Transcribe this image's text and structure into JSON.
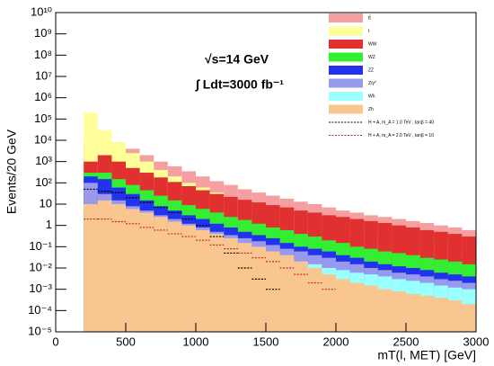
{
  "chart_data": {
    "type": "histogram",
    "title": null,
    "x_label": "mT(l, MET) [GeV]",
    "y_label": "Events/20 GeV",
    "annotations": [
      "√s=14 GeV",
      "∫ Ldt=3000 fb⁻¹"
    ],
    "log_y": true,
    "legend": "upper right",
    "xlim": [
      0,
      3000
    ],
    "xticks": [
      0,
      500,
      1000,
      1500,
      2000,
      2500,
      3000
    ],
    "ylim": [
      1e-05,
      10000000000
    ],
    "yticks": [
      {
        "value": 1e-05,
        "label": "10⁻⁵"
      },
      {
        "value": 0.0001,
        "label": "10⁻⁴"
      },
      {
        "value": 0.001,
        "label": "10⁻³"
      },
      {
        "value": 0.01,
        "label": "10⁻²"
      },
      {
        "value": 0.1,
        "label": "10⁻¹"
      },
      1,
      10,
      {
        "value": 100,
        "label": "10²"
      },
      {
        "value": 1000,
        "label": "10³"
      },
      {
        "value": 10000,
        "label": "10⁴"
      },
      {
        "value": 100000,
        "label": "10⁵"
      },
      {
        "value": 1000000,
        "label": "10⁶"
      },
      {
        "value": 10000000,
        "label": "10⁷"
      },
      {
        "value": 100000000,
        "label": "10⁸"
      },
      {
        "value": 1000000000,
        "label": "10⁹"
      },
      {
        "value": 10000000000,
        "label": "10¹⁰"
      }
    ],
    "bins": [
      200,
      300,
      400,
      500,
      600,
      700,
      800,
      900,
      1000,
      1100,
      1200,
      1300,
      1400,
      1500,
      1600,
      1700,
      1800,
      1900,
      2000,
      2100,
      2200,
      2300,
      2400,
      2500,
      2600,
      2700,
      2800,
      2900,
      3000
    ],
    "series": [
      {
        "name": "tt̄",
        "color": "#f4a0a0",
        "style": "fill",
        "values": [
          10000,
          15000,
          8000,
          4000,
          2000,
          1000,
          600,
          350,
          200,
          120,
          80,
          50,
          35,
          25,
          18,
          13,
          10,
          7,
          5,
          4,
          3,
          2.5,
          2,
          1.6,
          1.3,
          1,
          0.8,
          0.6
        ]
      },
      {
        "name": "t",
        "color": "#ffff99",
        "style": "fill",
        "values": [
          200000,
          30000,
          8000,
          2500,
          1000,
          400,
          200,
          100,
          60,
          35,
          20,
          12,
          8,
          5,
          3,
          2,
          1.3,
          1,
          0.7,
          0.5,
          0.35,
          0.25,
          0.2,
          0.15,
          0.1,
          0.08,
          0.06,
          0.05
        ]
      },
      {
        "name": "WW",
        "color": "#e03030",
        "style": "fill",
        "values": [
          1000,
          2000,
          1000,
          500,
          300,
          180,
          110,
          70,
          45,
          30,
          22,
          16,
          12,
          9,
          7,
          5,
          4,
          3,
          2.5,
          2,
          1.6,
          1.3,
          1,
          0.8,
          0.6,
          0.5,
          0.4,
          0.3
        ]
      },
      {
        "name": "WZ",
        "color": "#33ee33",
        "style": "fill",
        "values": [
          300,
          300,
          150,
          80,
          45,
          25,
          15,
          9,
          6,
          4,
          2.5,
          1.8,
          1.2,
          0.8,
          0.6,
          0.4,
          0.3,
          0.2,
          0.15,
          0.1,
          0.08,
          0.06,
          0.05,
          0.04,
          0.03,
          0.025,
          0.02,
          0.015
        ]
      },
      {
        "name": "ZZ",
        "color": "#2233ee",
        "style": "fill",
        "values": [
          200,
          150,
          60,
          30,
          15,
          8,
          5,
          3,
          2,
          1.2,
          0.8,
          0.5,
          0.35,
          0.25,
          0.15,
          0.1,
          0.08,
          0.06,
          0.04,
          0.03,
          0.02,
          0.015,
          0.012,
          0.01,
          0.008,
          0.006,
          0.005,
          0.004
        ]
      },
      {
        "name": "Z/γ*",
        "color": "#9999ee",
        "style": "fill",
        "values": [
          100,
          30,
          15,
          8,
          5,
          3,
          2,
          1.2,
          0.8,
          0.5,
          0.35,
          0.25,
          0.18,
          0.12,
          0.08,
          0.06,
          0.04,
          0.03,
          0.02,
          0.015,
          0.01,
          0.008,
          0.006,
          0.005,
          0.004,
          0.003,
          0.0025,
          0.002
        ]
      },
      {
        "name": "Wh",
        "color": "#99ffff",
        "style": "fill",
        "values": [
          10,
          5,
          3,
          2,
          1.2,
          0.8,
          0.5,
          0.35,
          0.25,
          0.18,
          0.12,
          0.08,
          0.06,
          0.04,
          0.03,
          0.02,
          0.015,
          0.01,
          0.008,
          0.006,
          0.005,
          0.004,
          0.003,
          0.0025,
          0.002,
          0.0015,
          0.0012,
          0.001
        ]
      },
      {
        "name": "Zh",
        "color": "#f9c68f",
        "style": "fill",
        "values": [
          10,
          15,
          10,
          6,
          4,
          2.5,
          1.5,
          1,
          0.6,
          0.4,
          0.25,
          0.15,
          0.1,
          0.06,
          0.04,
          0.02,
          0.01,
          0.005,
          0.003,
          0.002,
          0.0015,
          0.001,
          0.0008,
          0.0006,
          0.0005,
          0.0004,
          0.0003,
          0.0002
        ]
      },
      {
        "name": "H + A,  m_A = 1.0  TeV ,  tanβ = 40",
        "color": "#000000",
        "style": "line",
        "values": [
          50,
          40,
          35,
          20,
          12,
          7,
          4,
          2,
          1,
          0.3,
          0.05,
          0.01,
          0.003,
          0.001,
          null,
          null,
          null,
          null,
          null,
          null,
          null,
          null,
          null,
          null,
          null,
          null,
          null,
          null
        ]
      },
      {
        "name": "H + A,  m_A = 2.0  TeV ,  tanβ = 10",
        "color": "#cc2222",
        "style": "line",
        "values": [
          2,
          2,
          1.5,
          1.2,
          0.8,
          0.6,
          0.4,
          0.3,
          0.2,
          0.12,
          0.08,
          0.05,
          0.03,
          0.02,
          0.01,
          0.005,
          0.002,
          0.001,
          null,
          null,
          null,
          null,
          null,
          null,
          null,
          null,
          null,
          null
        ]
      }
    ]
  }
}
